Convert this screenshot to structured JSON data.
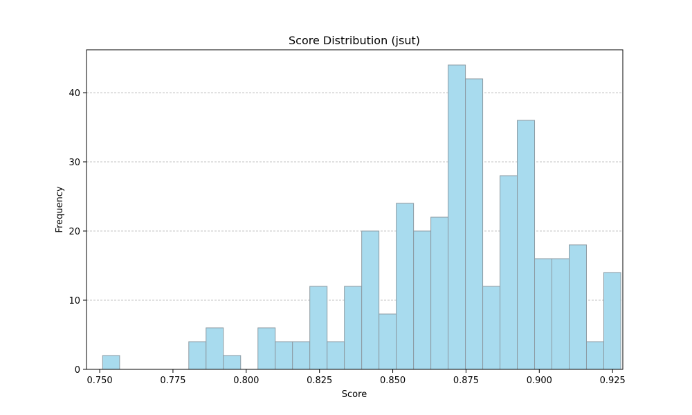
{
  "chart_data": {
    "type": "bar",
    "title": "Score Distribution (jsut)",
    "xlabel": "Score",
    "ylabel": "Frequency",
    "xlim": [
      0.7455,
      0.9285
    ],
    "ylim": [
      0,
      46.2
    ],
    "bin_edges": [
      0.751,
      0.7568,
      0.7627,
      0.7686,
      0.7745,
      0.7804,
      0.7863,
      0.7922,
      0.7981,
      0.804,
      0.8099,
      0.8158,
      0.8217,
      0.8276,
      0.8335,
      0.8394,
      0.8453,
      0.8512,
      0.8571,
      0.863,
      0.8689,
      0.8748,
      0.8807,
      0.8866,
      0.8925,
      0.8984,
      0.9043,
      0.9102,
      0.9161,
      0.922
    ],
    "values": [
      2,
      0,
      0,
      0,
      0,
      4,
      6,
      2,
      0,
      6,
      4,
      4,
      12,
      4,
      12,
      20,
      8,
      24,
      20,
      22,
      44,
      42,
      12,
      28,
      36,
      16,
      16,
      18,
      4,
      14
    ],
    "x_ticks": [
      "0.750",
      "0.775",
      "0.800",
      "0.825",
      "0.850",
      "0.875",
      "0.900",
      "0.925"
    ],
    "x_tick_values": [
      0.75,
      0.775,
      0.8,
      0.825,
      0.85,
      0.875,
      0.9,
      0.925
    ],
    "y_ticks": [
      "0",
      "10",
      "20",
      "30",
      "40"
    ],
    "y_tick_values": [
      0,
      10,
      20,
      30,
      40
    ],
    "grid": "y-dashed",
    "bar_color": "#a8dbee",
    "edge_color": "#8c9aa2"
  }
}
